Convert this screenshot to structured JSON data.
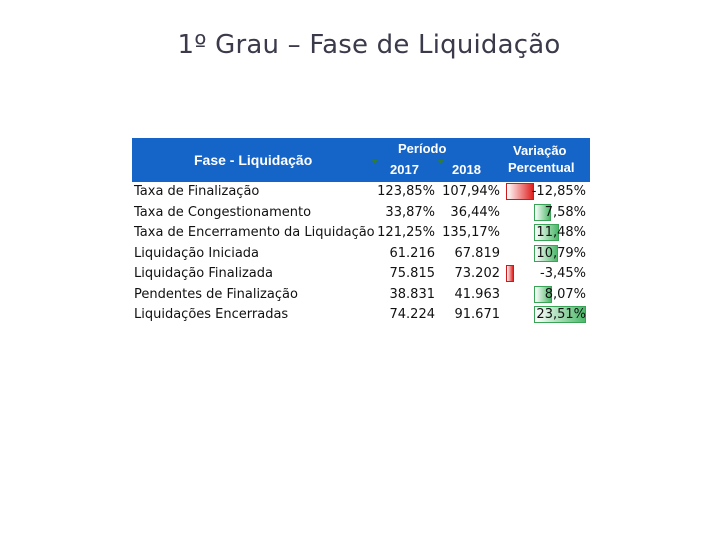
{
  "title": "1º Grau – Fase de Liquidação",
  "table": {
    "header": {
      "fase": "Fase - Liquidação",
      "periodo": "Período",
      "year1": "2017",
      "year2": "2018",
      "variacao_line1": "Variação",
      "variacao_line2": "Percentual"
    },
    "rows": [
      {
        "label": "Taxa de Finalização",
        "v2017": "123,85%",
        "v2018": "107,94%",
        "variation": "-12,85%",
        "variation_value": -12.85
      },
      {
        "label": "Taxa de Congestionamento",
        "v2017": "33,87%",
        "v2018": "36,44%",
        "variation": "7,58%",
        "variation_value": 7.58
      },
      {
        "label": "Taxa de Encerramento da Liquidação",
        "v2017": "121,25%",
        "v2018": "135,17%",
        "variation": "11,48%",
        "variation_value": 11.48
      },
      {
        "label": "Liquidação Iniciada",
        "v2017": "61.216",
        "v2018": "67.819",
        "variation": "10,79%",
        "variation_value": 10.79
      },
      {
        "label": "Liquidação Finalizada",
        "v2017": "75.815",
        "v2018": "73.202",
        "variation": "-3,45%",
        "variation_value": -3.45
      },
      {
        "label": "Pendentes de Finalização",
        "v2017": "38.831",
        "v2018": "41.963",
        "variation": "8,07%",
        "variation_value": 8.07
      },
      {
        "label": "Liquidações Encerradas",
        "v2017": "74.224",
        "v2018": "91.671",
        "variation": "23,51%",
        "variation_value": 23.51
      }
    ]
  },
  "colors": {
    "header_bg": "#1565c8",
    "negative_bar": "#e02020",
    "positive_bar": "#4cb86a"
  }
}
